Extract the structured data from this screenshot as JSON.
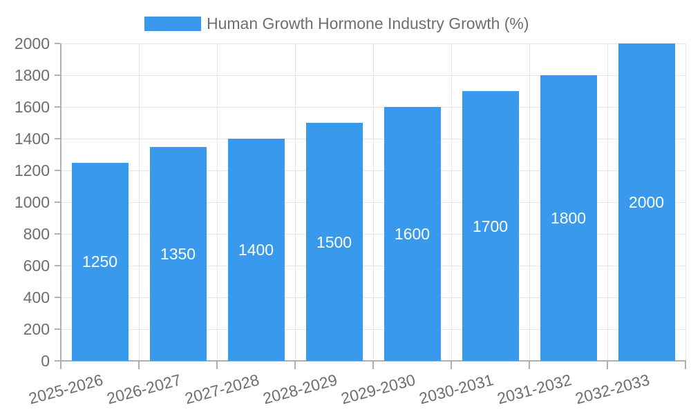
{
  "colors": {
    "bar": "#3999ED",
    "axis": "#B0B0B0",
    "grid": "#E6E6E6",
    "text": "#6E6E6E",
    "value_text": "#FFFFFF",
    "background": "#FFFFFF"
  },
  "chart_data": {
    "type": "bar",
    "title": "",
    "legend": {
      "label": "Human Growth Hormone Industry Growth (%)",
      "position": "top"
    },
    "categories": [
      "2025-2026",
      "2026-2027",
      "2027-2028",
      "2028-2029",
      "2029-2030",
      "2030-2031",
      "2031-2032",
      "2032-2033"
    ],
    "series": [
      {
        "name": "Human Growth Hormone Industry Growth (%)",
        "values": [
          1250,
          1350,
          1400,
          1500,
          1600,
          1700,
          1800,
          2000
        ]
      }
    ],
    "xlabel": "",
    "ylabel": "",
    "ylim": [
      0,
      2000
    ],
    "yticks": [
      0,
      200,
      400,
      600,
      800,
      1000,
      1200,
      1400,
      1600,
      1800,
      2000
    ],
    "grid": true,
    "x_label_rotation_deg": -15,
    "value_label_position": "inside-center"
  }
}
